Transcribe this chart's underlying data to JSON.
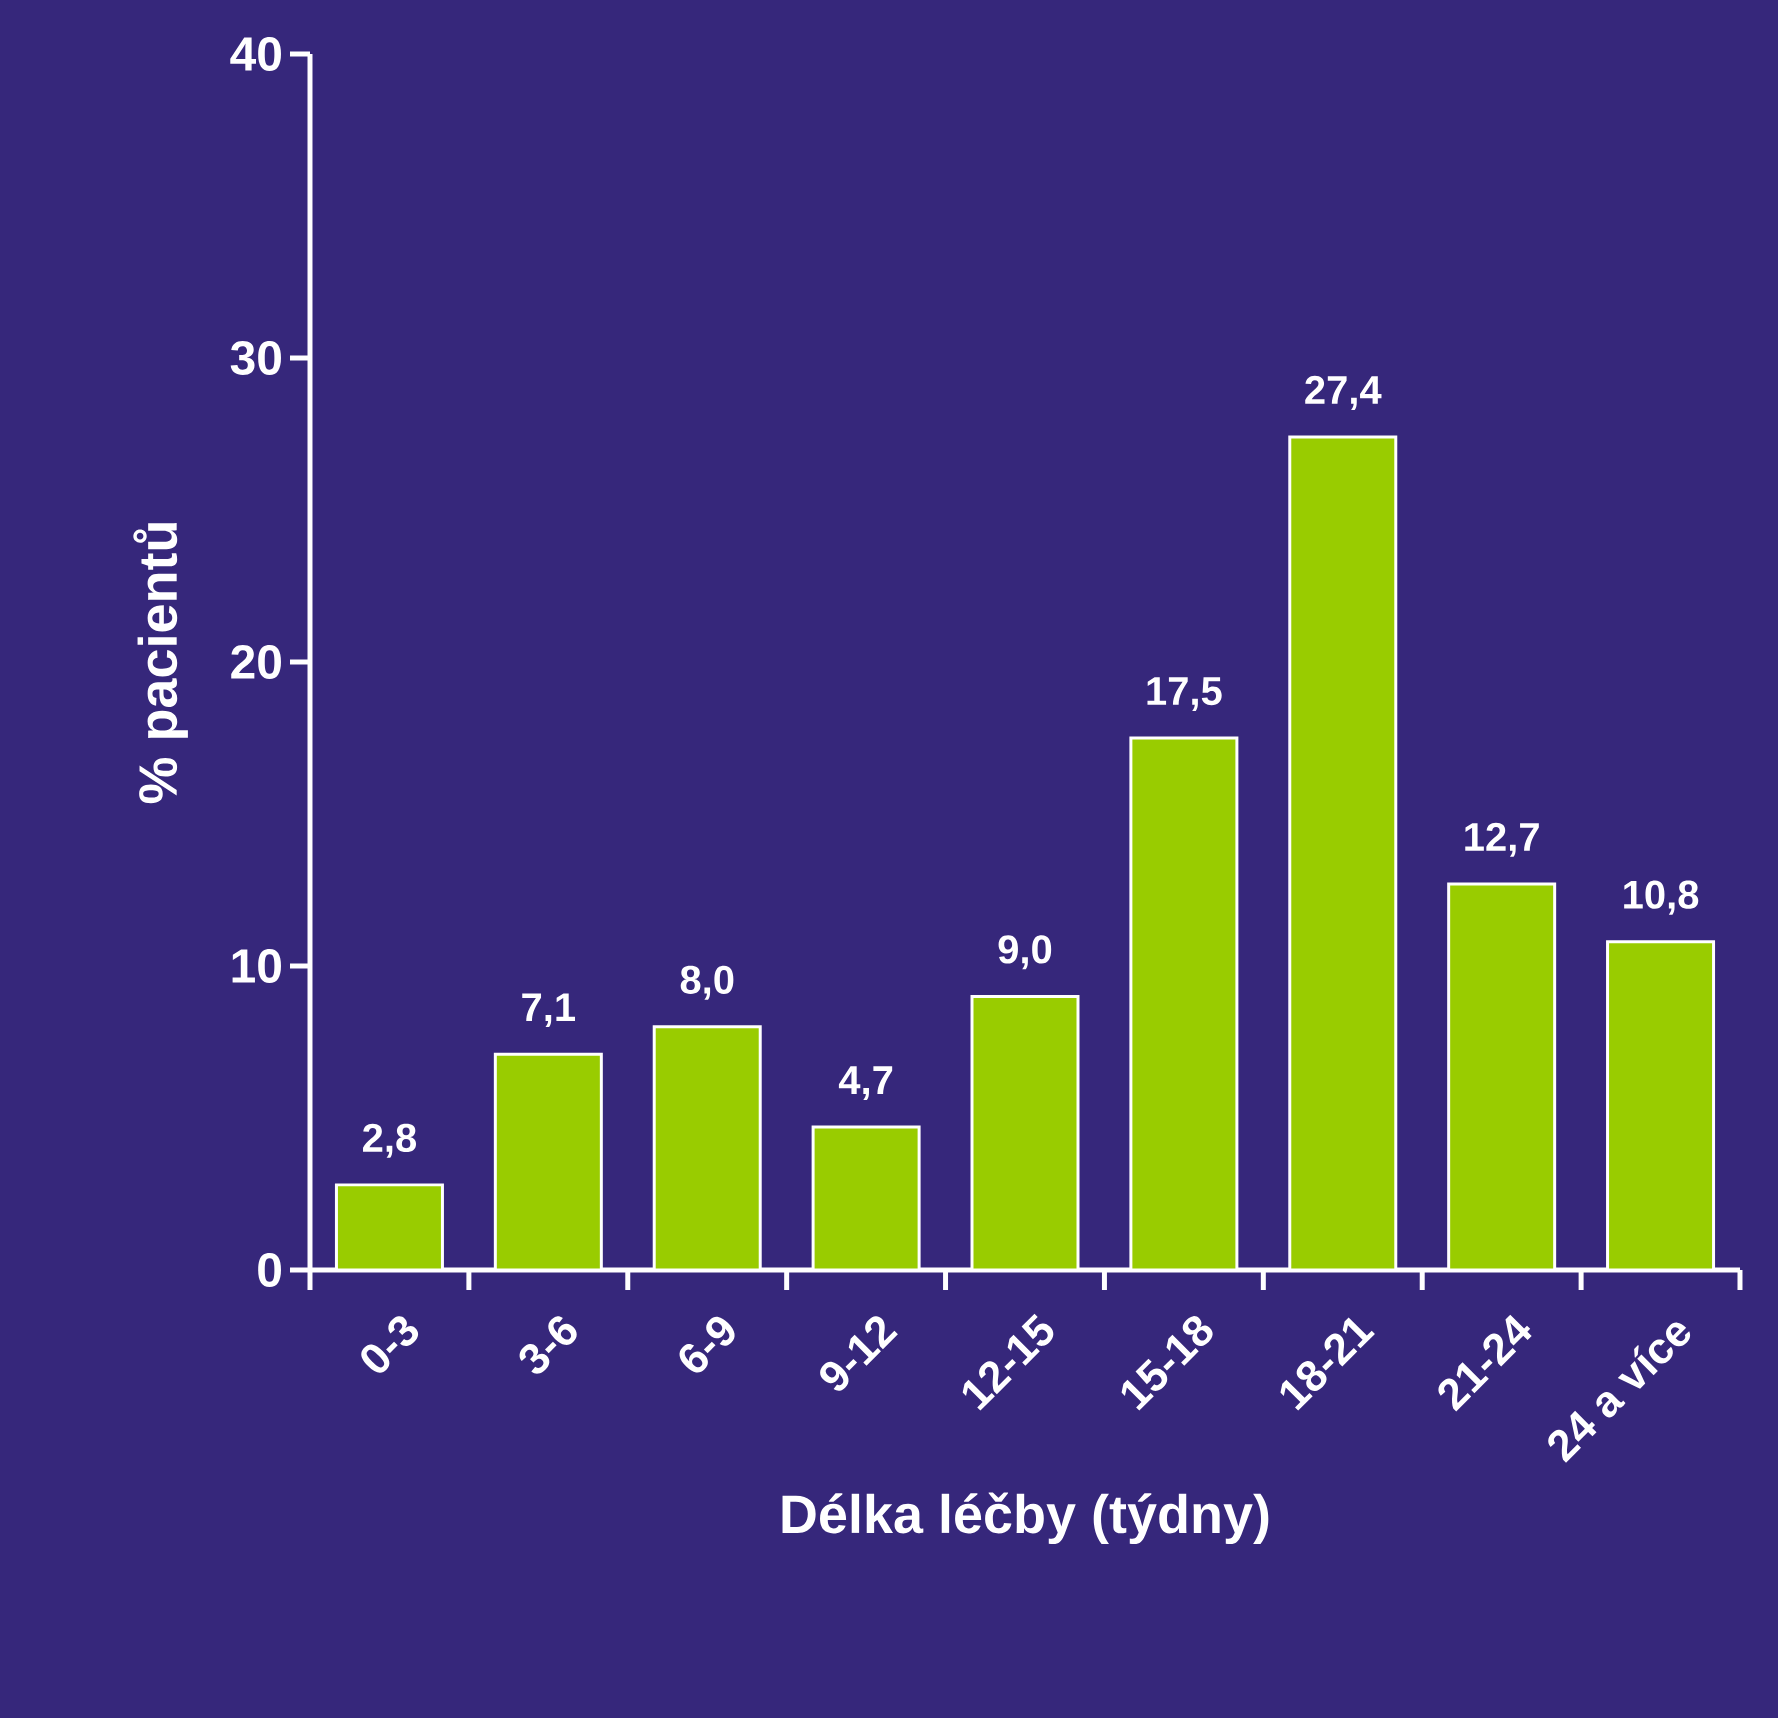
{
  "chart_data": {
    "type": "bar",
    "xlabel": "Délka léčby (týdny)",
    "ylabel": "% pacientů",
    "categories": [
      "0-3",
      "3-6",
      "6-9",
      "9-12",
      "12-15",
      "15-18",
      "18-21",
      "21-24",
      "24 a více"
    ],
    "values": [
      2.8,
      7.1,
      8.0,
      4.7,
      9.0,
      17.5,
      27.4,
      12.7,
      10.8
    ],
    "value_labels": [
      "2,8",
      "7,1",
      "8,0",
      "4,7",
      "9,0",
      "17,5",
      "27,4",
      "12,7",
      "10,8"
    ],
    "color": "#99cc00",
    "ylim": [
      0,
      40
    ],
    "yticks": [
      0,
      10,
      20,
      30,
      40
    ],
    "grid": false
  }
}
